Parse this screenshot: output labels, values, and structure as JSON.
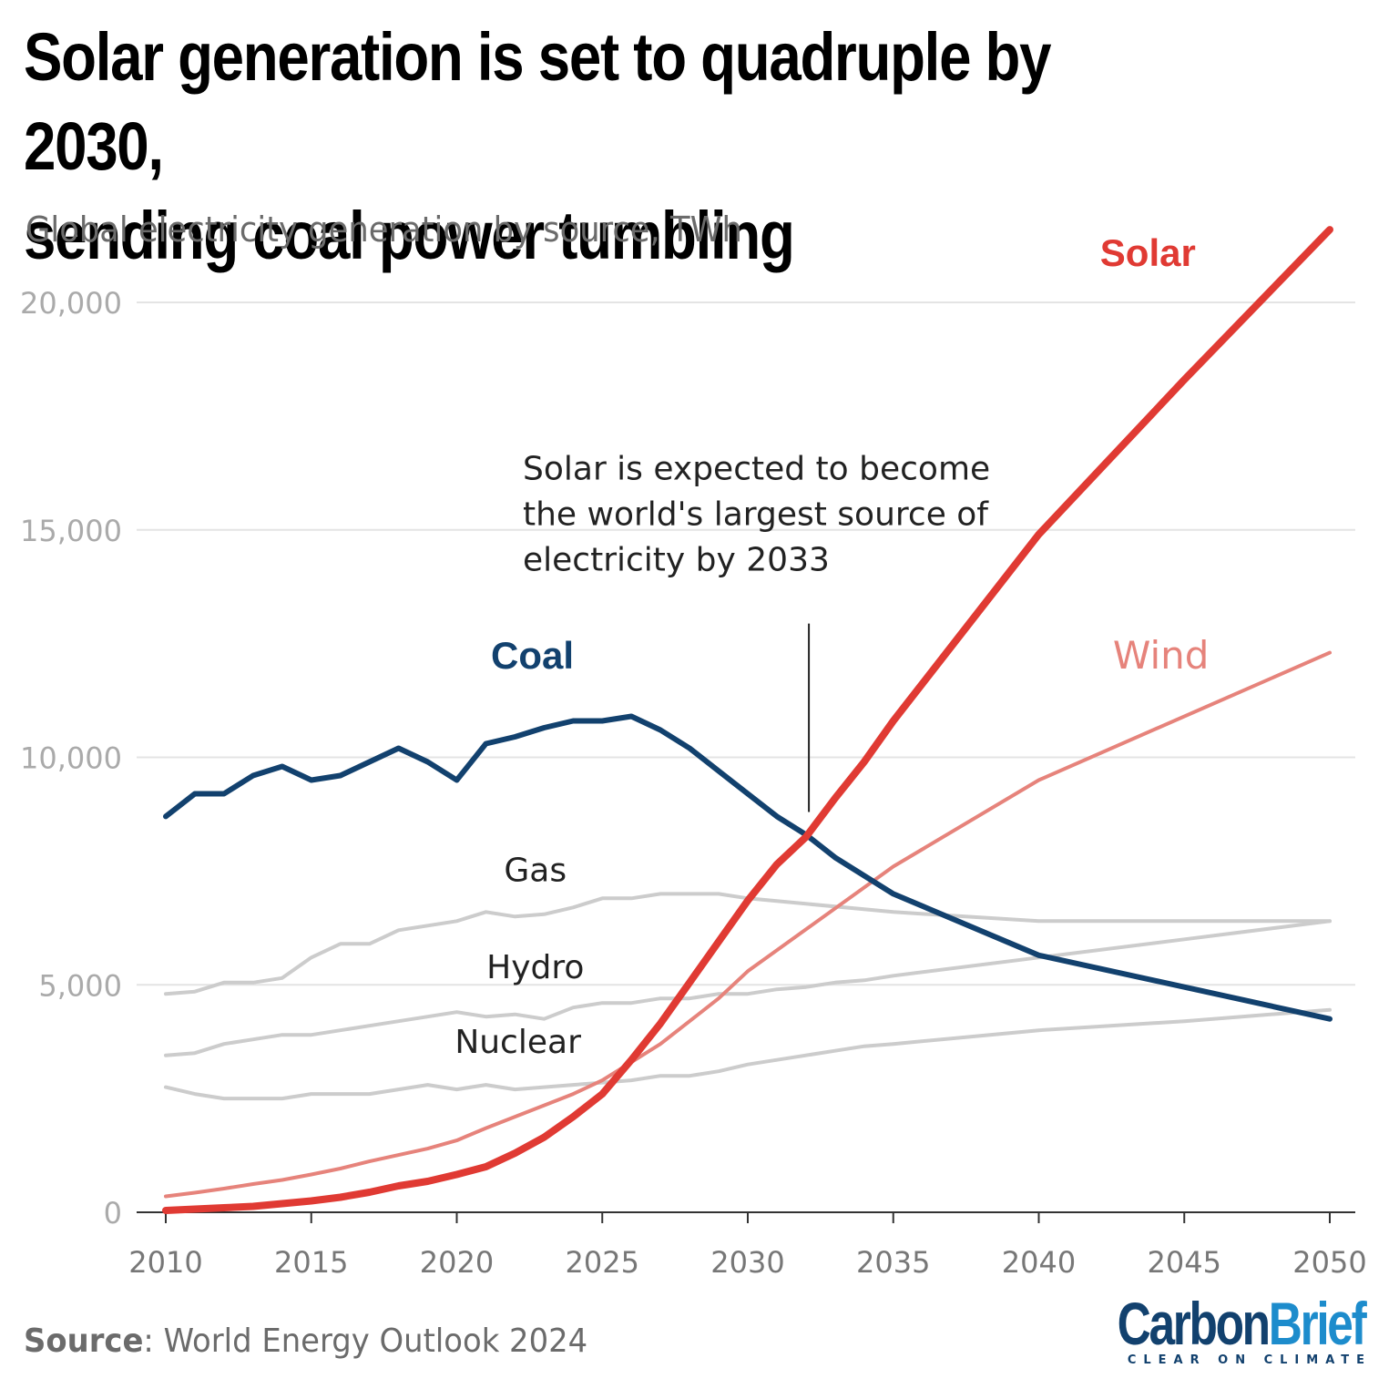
{
  "title_line1": "Solar generation is set to quadruple by 2030,",
  "title_line2": "sending coal power tumbling",
  "subtitle": "Global electricity generation by source, TWh",
  "source_label": "Source",
  "source_text": ": World Energy Outlook 2024",
  "logo": {
    "part1": "Carbon",
    "part2": "Brief",
    "tagline": "CLEAR ON CLIMATE"
  },
  "chart_data": {
    "type": "line",
    "xlim": [
      2010,
      2050
    ],
    "ylim": [
      0,
      20000
    ],
    "x_ticks": [
      "2010",
      "2015",
      "2020",
      "2025",
      "2030",
      "2035",
      "2040",
      "2045",
      "2050"
    ],
    "y_ticks": [
      "0",
      "5,000",
      "10,000",
      "15,000",
      "20,000"
    ],
    "grid": "horizontal",
    "series": [
      {
        "name": "Gas",
        "color": "#cccccc",
        "label_color": "#222222",
        "points": [
          [
            2010,
            4800
          ],
          [
            2011,
            4850
          ],
          [
            2012,
            5050
          ],
          [
            2013,
            5050
          ],
          [
            2014,
            5150
          ],
          [
            2015,
            5600
          ],
          [
            2016,
            5900
          ],
          [
            2017,
            5900
          ],
          [
            2018,
            6200
          ],
          [
            2019,
            6300
          ],
          [
            2020,
            6400
          ],
          [
            2021,
            6600
          ],
          [
            2022,
            6500
          ],
          [
            2023,
            6550
          ],
          [
            2024,
            6700
          ],
          [
            2025,
            6900
          ],
          [
            2026,
            6900
          ],
          [
            2027,
            7000
          ],
          [
            2028,
            7000
          ],
          [
            2029,
            7000
          ],
          [
            2030,
            6900
          ],
          [
            2035,
            6600
          ],
          [
            2040,
            6400
          ],
          [
            2050,
            6400
          ]
        ]
      },
      {
        "name": "Hydro",
        "color": "#cccccc",
        "label_color": "#222222",
        "points": [
          [
            2010,
            3450
          ],
          [
            2011,
            3500
          ],
          [
            2012,
            3700
          ],
          [
            2013,
            3800
          ],
          [
            2014,
            3900
          ],
          [
            2015,
            3900
          ],
          [
            2016,
            4000
          ],
          [
            2017,
            4100
          ],
          [
            2018,
            4200
          ],
          [
            2019,
            4300
          ],
          [
            2020,
            4400
          ],
          [
            2021,
            4300
          ],
          [
            2022,
            4350
          ],
          [
            2023,
            4250
          ],
          [
            2024,
            4500
          ],
          [
            2025,
            4600
          ],
          [
            2026,
            4600
          ],
          [
            2027,
            4700
          ],
          [
            2028,
            4700
          ],
          [
            2029,
            4800
          ],
          [
            2030,
            4800
          ],
          [
            2031,
            4900
          ],
          [
            2032,
            4950
          ],
          [
            2033,
            5050
          ],
          [
            2034,
            5100
          ],
          [
            2035,
            5200
          ],
          [
            2040,
            5600
          ],
          [
            2045,
            6000
          ],
          [
            2050,
            6400
          ]
        ]
      },
      {
        "name": "Nuclear",
        "color": "#cccccc",
        "label_color": "#222222",
        "points": [
          [
            2010,
            2750
          ],
          [
            2011,
            2600
          ],
          [
            2012,
            2500
          ],
          [
            2013,
            2500
          ],
          [
            2014,
            2500
          ],
          [
            2015,
            2600
          ],
          [
            2016,
            2600
          ],
          [
            2017,
            2600
          ],
          [
            2018,
            2700
          ],
          [
            2019,
            2800
          ],
          [
            2020,
            2700
          ],
          [
            2021,
            2800
          ],
          [
            2022,
            2700
          ],
          [
            2023,
            2750
          ],
          [
            2024,
            2800
          ],
          [
            2025,
            2850
          ],
          [
            2026,
            2900
          ],
          [
            2027,
            3000
          ],
          [
            2028,
            3000
          ],
          [
            2029,
            3100
          ],
          [
            2030,
            3250
          ],
          [
            2031,
            3350
          ],
          [
            2032,
            3450
          ],
          [
            2033,
            3550
          ],
          [
            2034,
            3650
          ],
          [
            2035,
            3700
          ],
          [
            2040,
            4000
          ],
          [
            2045,
            4200
          ],
          [
            2050,
            4450
          ]
        ]
      },
      {
        "name": "Wind",
        "color": "#e6837b",
        "label_color": "#e6837b",
        "points": [
          [
            2010,
            350
          ],
          [
            2011,
            430
          ],
          [
            2012,
            520
          ],
          [
            2013,
            620
          ],
          [
            2014,
            710
          ],
          [
            2015,
            830
          ],
          [
            2016,
            960
          ],
          [
            2017,
            1120
          ],
          [
            2018,
            1260
          ],
          [
            2019,
            1400
          ],
          [
            2020,
            1580
          ],
          [
            2021,
            1850
          ],
          [
            2022,
            2100
          ],
          [
            2023,
            2350
          ],
          [
            2024,
            2600
          ],
          [
            2025,
            2900
          ],
          [
            2026,
            3300
          ],
          [
            2027,
            3700
          ],
          [
            2028,
            4200
          ],
          [
            2029,
            4700
          ],
          [
            2030,
            5300
          ],
          [
            2035,
            7600
          ],
          [
            2040,
            9500
          ],
          [
            2050,
            12300
          ]
        ]
      },
      {
        "name": "Coal",
        "color": "#12416e",
        "label_color": "#12416e",
        "points": [
          [
            2010,
            8700
          ],
          [
            2011,
            9200
          ],
          [
            2012,
            9200
          ],
          [
            2013,
            9600
          ],
          [
            2014,
            9800
          ],
          [
            2015,
            9500
          ],
          [
            2016,
            9600
          ],
          [
            2017,
            9900
          ],
          [
            2018,
            10200
          ],
          [
            2019,
            9900
          ],
          [
            2020,
            9500
          ],
          [
            2021,
            10300
          ],
          [
            2022,
            10450
          ],
          [
            2023,
            10650
          ],
          [
            2024,
            10800
          ],
          [
            2025,
            10800
          ],
          [
            2026,
            10900
          ],
          [
            2027,
            10600
          ],
          [
            2028,
            10200
          ],
          [
            2029,
            9700
          ],
          [
            2030,
            9200
          ],
          [
            2031,
            8700
          ],
          [
            2032,
            8300
          ],
          [
            2033,
            7800
          ],
          [
            2034,
            7400
          ],
          [
            2035,
            7000
          ],
          [
            2040,
            5650
          ],
          [
            2045,
            4950
          ],
          [
            2050,
            4250
          ]
        ]
      },
      {
        "name": "Solar",
        "color": "#e03a33",
        "label_color": "#e03a33",
        "points": [
          [
            2010,
            40
          ],
          [
            2011,
            70
          ],
          [
            2012,
            100
          ],
          [
            2013,
            130
          ],
          [
            2014,
            190
          ],
          [
            2015,
            250
          ],
          [
            2016,
            330
          ],
          [
            2017,
            440
          ],
          [
            2018,
            580
          ],
          [
            2019,
            680
          ],
          [
            2020,
            830
          ],
          [
            2021,
            1000
          ],
          [
            2022,
            1300
          ],
          [
            2023,
            1650
          ],
          [
            2024,
            2100
          ],
          [
            2025,
            2600
          ],
          [
            2026,
            3350
          ],
          [
            2027,
            4150
          ],
          [
            2028,
            5050
          ],
          [
            2029,
            5950
          ],
          [
            2030,
            6850
          ],
          [
            2031,
            7650
          ],
          [
            2032,
            8250
          ],
          [
            2033,
            9100
          ],
          [
            2034,
            9900
          ],
          [
            2035,
            10800
          ],
          [
            2040,
            14900
          ],
          [
            2045,
            18300
          ],
          [
            2050,
            21600
          ]
        ]
      }
    ],
    "labels": [
      {
        "series": "Solar",
        "text": "Solar",
        "x": 2043.75,
        "y": 20800,
        "bold": true,
        "size": 42
      },
      {
        "series": "Wind",
        "text": "Wind",
        "x": 2044.2,
        "y": 11950,
        "bold": false,
        "size": 42
      },
      {
        "series": "Coal",
        "text": "Coal",
        "x": 2022.6,
        "y": 11950,
        "bold": true,
        "size": 42
      },
      {
        "series": "Gas",
        "text": "Gas",
        "x": 2022.7,
        "y": 7280,
        "bold": false,
        "size": 36
      },
      {
        "series": "Hydro",
        "text": "Hydro",
        "x": 2022.7,
        "y": 5150,
        "bold": false,
        "size": 36
      },
      {
        "series": "Nuclear",
        "text": "Nuclear",
        "x": 2022.1,
        "y": 3500,
        "bold": false,
        "size": 36
      }
    ],
    "annotation": {
      "lines": [
        "Solar is expected to become",
        "the world's largest source of",
        "electricity by 2033"
      ],
      "x": 2032.1,
      "y_top": 13700,
      "y_bottom": 8800
    }
  }
}
